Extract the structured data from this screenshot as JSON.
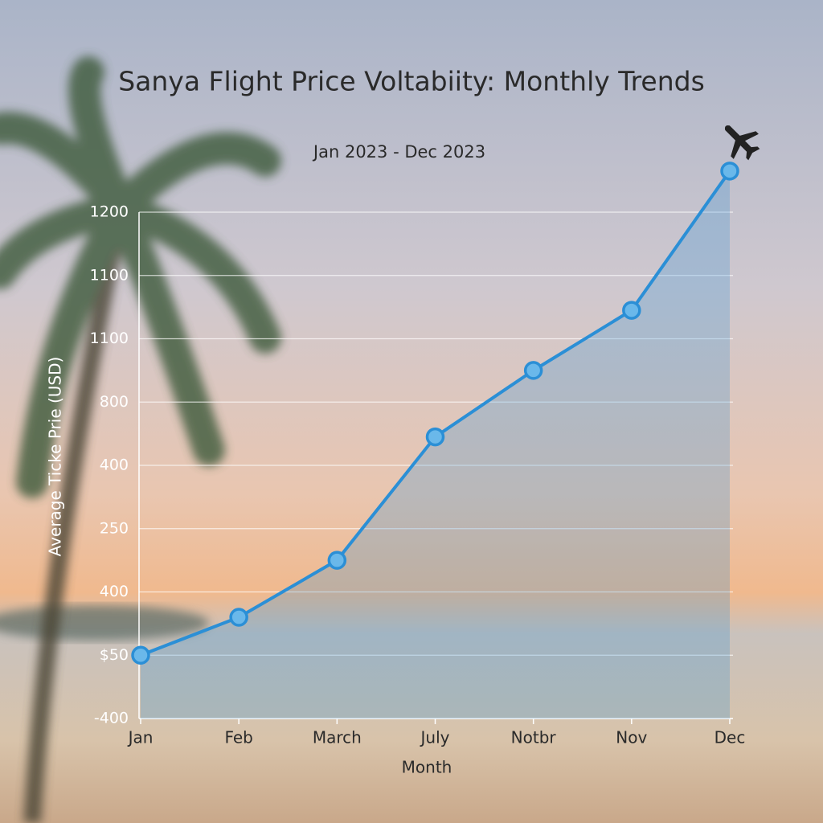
{
  "chart_data": {
    "type": "line",
    "title": "Sanya Flight Price Voltabiity: Monthly Trends",
    "subtitle": "Jan 2023 - Dec 2023",
    "x_label": "Month",
    "y_label": "Average Ticke Prie (USD)",
    "categories": [
      "Jan",
      "Feb",
      "March",
      "July",
      "Notbr",
      "Nov",
      "Dec"
    ],
    "series": [
      {
        "color": "#2b8fd6",
        "values": [
          -200,
          -80,
          100,
          490,
          700,
          890,
          1330
        ]
      }
    ],
    "area": true,
    "ylim": [
      -400,
      1200
    ],
    "yticks": [
      -400,
      {
        "value": -200,
        "label": "$50"
      },
      {
        "value": 0,
        "label": "400"
      },
      {
        "value": 200,
        "label": "250"
      },
      400,
      {
        "value": 600,
        "label": "800"
      },
      {
        "value": 800,
        "label": "1100"
      },
      {
        "value": 1000,
        "label": "1100"
      },
      1200
    ],
    "grid": true
  }
}
